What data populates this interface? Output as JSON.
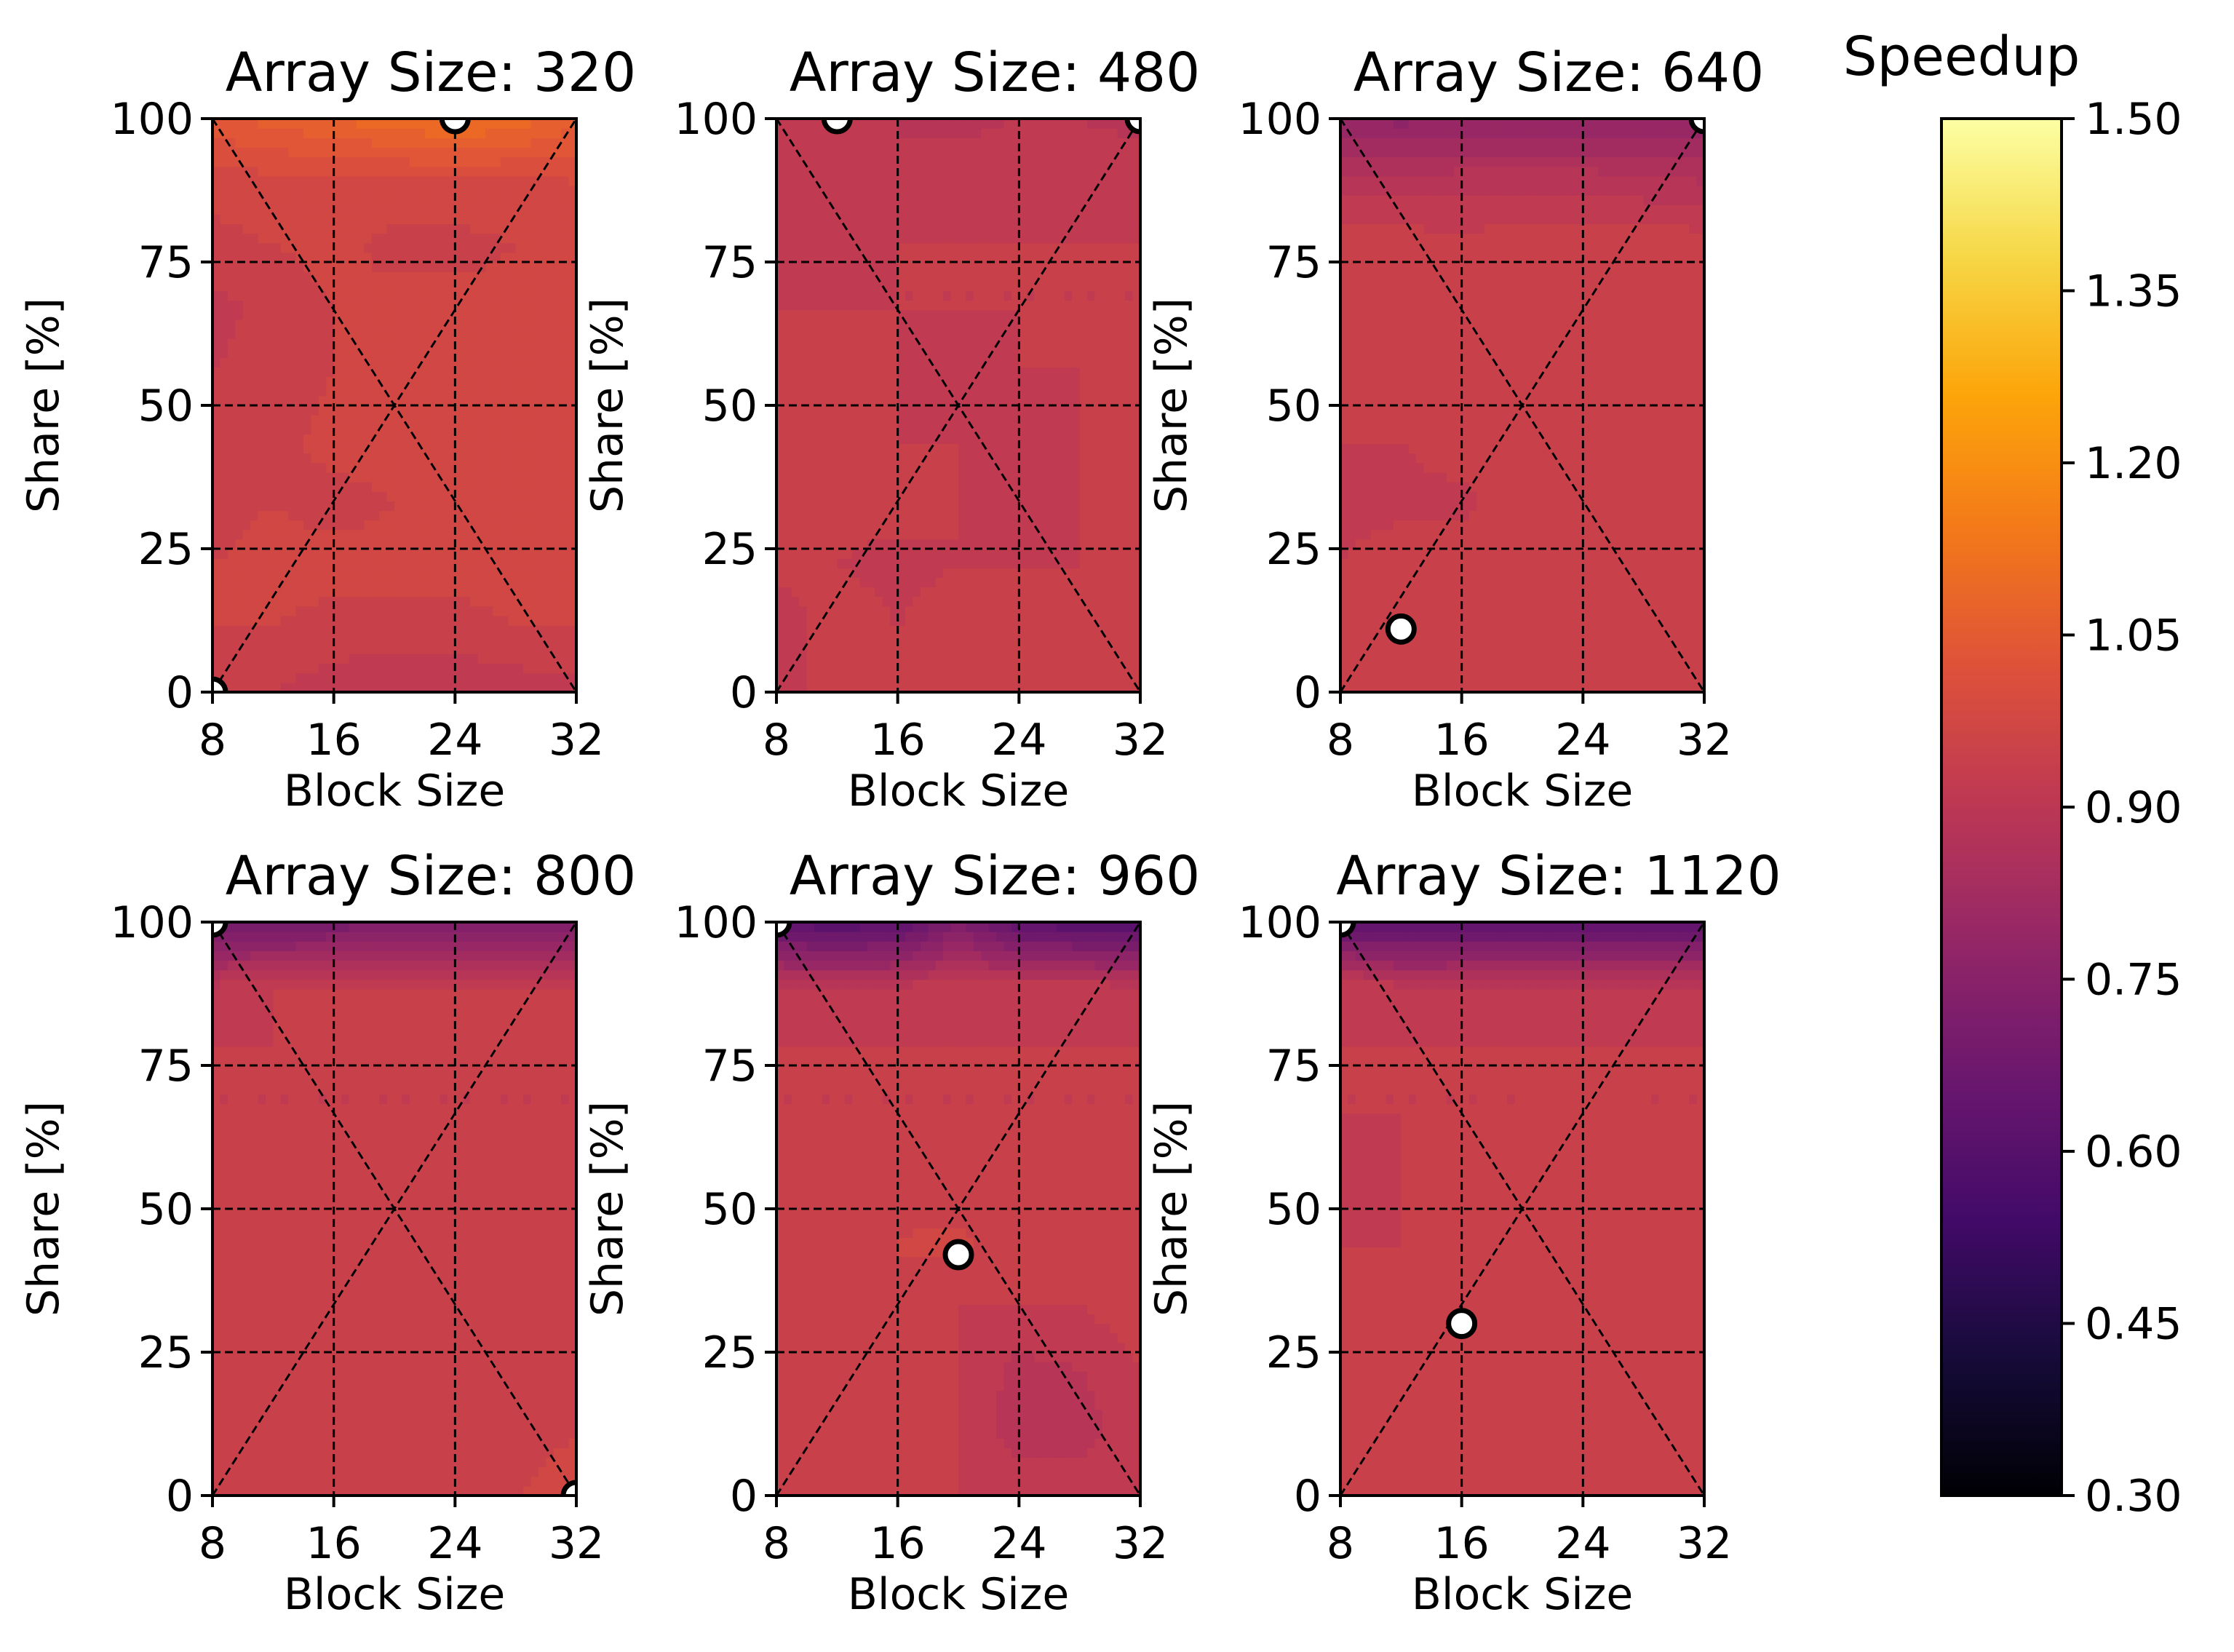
{
  "chart_data": {
    "type": "heatmap",
    "subtype": "filled-contour",
    "xlabel": "Block Size",
    "ylabel": "Share [%]",
    "x_ticks": [
      8,
      16,
      24,
      32
    ],
    "y_ticks": [
      0,
      25,
      50,
      75,
      100
    ],
    "xlim": [
      8,
      32
    ],
    "ylim": [
      0,
      100
    ],
    "grid": true,
    "colormap": "inferno",
    "colorbar": {
      "title": "Speedup",
      "range": [
        0.3,
        1.5
      ],
      "ticks": [
        "0.30",
        "0.45",
        "0.60",
        "0.75",
        "0.90",
        "1.05",
        "1.20",
        "1.35",
        "1.50"
      ]
    },
    "x_grid": [
      8,
      12,
      16,
      20,
      24,
      28,
      32
    ],
    "y_grid": [
      0,
      11,
      22,
      33,
      44,
      56,
      67,
      78,
      89,
      100
    ],
    "panels": [
      {
        "title": "Array Size: 320",
        "best": {
          "x": 24,
          "y": 100
        },
        "extra_best": [
          {
            "x": 8,
            "y": 0
          }
        ],
        "z": [
          [
            0.96,
            0.93,
            0.91,
            0.9,
            0.9,
            0.91,
            0.92
          ],
          [
            0.96,
            0.96,
            0.95,
            0.95,
            0.95,
            0.96,
            0.96
          ],
          [
            0.96,
            0.97,
            0.97,
            0.97,
            0.97,
            0.97,
            0.96
          ],
          [
            0.95,
            0.96,
            0.95,
            0.96,
            0.97,
            0.97,
            0.96
          ],
          [
            0.93,
            0.95,
            0.97,
            0.97,
            0.97,
            0.97,
            0.96
          ],
          [
            0.93,
            0.94,
            0.96,
            0.97,
            0.97,
            0.96,
            0.96
          ],
          [
            0.92,
            0.94,
            0.96,
            0.97,
            0.97,
            0.97,
            0.96
          ],
          [
            0.95,
            0.96,
            0.97,
            0.95,
            0.95,
            0.96,
            0.96
          ],
          [
            0.97,
            0.98,
            0.98,
            0.98,
            0.98,
            0.98,
            0.99
          ],
          [
            1.04,
            1.06,
            1.08,
            1.1,
            1.12,
            1.1,
            1.06
          ]
        ]
      },
      {
        "title": "Array Size: 480",
        "best": {
          "x": 12,
          "y": 100
        },
        "extra_best": [
          {
            "x": 32,
            "y": 100
          }
        ],
        "z": [
          [
            0.93,
            0.93,
            0.93,
            0.93,
            0.93,
            0.93,
            0.93
          ],
          [
            0.91,
            0.95,
            0.93,
            0.95,
            0.94,
            0.93,
            0.93
          ],
          [
            0.94,
            0.93,
            0.92,
            0.93,
            0.93,
            0.93,
            0.93
          ],
          [
            0.94,
            0.94,
            0.94,
            0.93,
            0.92,
            0.93,
            0.94
          ],
          [
            0.93,
            0.94,
            0.93,
            0.93,
            0.9,
            0.93,
            0.93
          ],
          [
            0.93,
            0.93,
            0.93,
            0.9,
            0.93,
            0.93,
            0.93
          ],
          [
            0.93,
            0.93,
            0.93,
            0.93,
            0.93,
            0.93,
            0.93
          ],
          [
            0.93,
            0.92,
            0.93,
            0.93,
            0.93,
            0.93,
            0.93
          ],
          [
            0.91,
            0.92,
            0.9,
            0.92,
            0.93,
            0.92,
            0.92
          ],
          [
            0.9,
            0.91,
            0.9,
            0.89,
            0.9,
            0.9,
            0.89
          ]
        ]
      },
      {
        "title": "Array Size: 640",
        "best": {
          "x": 12,
          "y": 11
        },
        "extra_best": [
          {
            "x": 32,
            "y": 100
          }
        ],
        "z": [
          [
            0.95,
            0.95,
            0.95,
            0.95,
            0.95,
            0.95,
            0.95
          ],
          [
            0.95,
            0.95,
            0.95,
            0.95,
            0.95,
            0.95,
            0.95
          ],
          [
            0.93,
            0.95,
            0.95,
            0.95,
            0.95,
            0.95,
            0.95
          ],
          [
            0.92,
            0.92,
            0.92,
            0.95,
            0.95,
            0.95,
            0.95
          ],
          [
            0.93,
            0.93,
            0.95,
            0.95,
            0.95,
            0.95,
            0.95
          ],
          [
            0.95,
            0.95,
            0.95,
            0.95,
            0.95,
            0.95,
            0.95
          ],
          [
            0.93,
            0.95,
            0.95,
            0.95,
            0.95,
            0.95,
            0.95
          ],
          [
            0.95,
            0.95,
            0.94,
            0.95,
            0.95,
            0.95,
            0.95
          ],
          [
            0.88,
            0.88,
            0.89,
            0.89,
            0.89,
            0.88,
            0.87
          ],
          [
            0.78,
            0.77,
            0.78,
            0.78,
            0.78,
            0.78,
            0.78
          ]
        ]
      },
      {
        "title": "Array Size: 800",
        "best": {
          "x": 8,
          "y": 100
        },
        "extra_best": [
          {
            "x": 32,
            "y": 0
          }
        ],
        "z": [
          [
            0.93,
            0.93,
            0.95,
            0.93,
            0.95,
            0.96,
            0.97
          ],
          [
            0.93,
            0.93,
            0.95,
            0.93,
            0.93,
            0.95,
            0.96
          ],
          [
            0.93,
            0.93,
            0.93,
            0.93,
            0.93,
            0.93,
            0.93
          ],
          [
            0.95,
            0.93,
            0.93,
            0.93,
            0.93,
            0.93,
            0.93
          ],
          [
            0.93,
            0.93,
            0.93,
            0.93,
            0.95,
            0.96,
            0.96
          ],
          [
            0.95,
            0.93,
            0.93,
            0.93,
            0.93,
            0.95,
            0.96
          ],
          [
            0.93,
            0.93,
            0.93,
            0.93,
            0.93,
            0.93,
            0.93
          ],
          [
            0.93,
            0.93,
            0.93,
            0.93,
            0.93,
            0.93,
            0.93
          ],
          [
            0.9,
            0.93,
            0.93,
            0.93,
            0.93,
            0.93,
            0.93
          ],
          [
            0.7,
            0.68,
            0.7,
            0.71,
            0.71,
            0.71,
            0.71
          ]
        ]
      },
      {
        "title": "Array Size: 960",
        "best": {
          "x": 20,
          "y": 42
        },
        "extra_best": [
          {
            "x": 8,
            "y": 100
          }
        ],
        "z": [
          [
            0.95,
            0.96,
            0.95,
            0.93,
            0.93,
            0.93,
            0.93
          ],
          [
            0.93,
            0.95,
            0.96,
            0.93,
            0.88,
            0.88,
            0.93
          ],
          [
            0.93,
            0.93,
            0.93,
            0.93,
            0.89,
            0.9,
            0.93
          ],
          [
            0.93,
            0.96,
            0.96,
            0.93,
            0.93,
            0.93,
            0.95
          ],
          [
            0.93,
            0.95,
            0.96,
            0.97,
            0.93,
            0.93,
            0.93
          ],
          [
            0.93,
            0.93,
            0.95,
            0.93,
            0.93,
            0.93,
            0.93
          ],
          [
            0.93,
            0.93,
            0.93,
            0.93,
            0.93,
            0.93,
            0.93
          ],
          [
            0.93,
            0.93,
            0.93,
            0.93,
            0.93,
            0.93,
            0.93
          ],
          [
            0.9,
            0.9,
            0.9,
            0.92,
            0.92,
            0.91,
            0.9
          ],
          [
            0.62,
            0.6,
            0.62,
            0.72,
            0.62,
            0.6,
            0.6
          ]
        ]
      },
      {
        "title": "Array Size: 1120",
        "best": {
          "x": 16,
          "y": 30
        },
        "extra_best": [
          {
            "x": 8,
            "y": 100
          }
        ],
        "z": [
          [
            0.93,
            0.95,
            0.96,
            0.93,
            0.95,
            0.95,
            0.95
          ],
          [
            0.93,
            0.95,
            0.96,
            0.95,
            0.93,
            0.95,
            0.95
          ],
          [
            0.93,
            0.93,
            0.96,
            0.93,
            0.93,
            0.93,
            0.93
          ],
          [
            0.93,
            0.96,
            0.96,
            0.93,
            0.93,
            0.93,
            0.93
          ],
          [
            0.93,
            0.93,
            0.96,
            0.95,
            0.93,
            0.93,
            0.93
          ],
          [
            0.9,
            0.93,
            0.93,
            0.93,
            0.93,
            0.93,
            0.95
          ],
          [
            0.93,
            0.93,
            0.93,
            0.93,
            0.95,
            0.93,
            0.93
          ],
          [
            0.93,
            0.93,
            0.93,
            0.93,
            0.93,
            0.93,
            0.93
          ],
          [
            0.93,
            0.9,
            0.9,
            0.9,
            0.9,
            0.9,
            0.9
          ],
          [
            0.62,
            0.61,
            0.62,
            0.62,
            0.62,
            0.62,
            0.62
          ]
        ]
      }
    ]
  }
}
